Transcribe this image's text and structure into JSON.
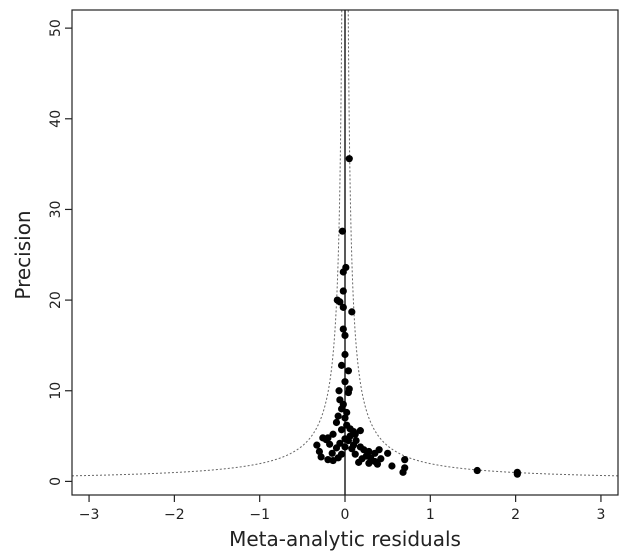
{
  "chart_data": {
    "type": "scatter",
    "title": "",
    "xlabel": "Meta-analytic residuals",
    "ylabel": "Precision",
    "xlim": [
      -3.2,
      3.2
    ],
    "ylim": [
      -1.5,
      52
    ],
    "xticks": [
      -3,
      -2,
      -1,
      0,
      1,
      2,
      3
    ],
    "xtick_labels": [
      "−3",
      "−2",
      "−1",
      "0",
      "1",
      "2",
      "3"
    ],
    "yticks": [
      0,
      10,
      20,
      30,
      40,
      50
    ],
    "ytick_labels": [
      "0",
      "10",
      "20",
      "30",
      "40",
      "50"
    ],
    "vertical_reference_line_x": 0,
    "funnel_bound_z": 1.96,
    "grid": false,
    "legend": "none",
    "colors": {
      "points": "#000000",
      "axes": "#222222",
      "funnel": "#666666"
    },
    "points": [
      {
        "x": 0.05,
        "y": 35.6
      },
      {
        "x": -0.03,
        "y": 27.6
      },
      {
        "x": 0.01,
        "y": 23.6
      },
      {
        "x": -0.02,
        "y": 23.1
      },
      {
        "x": -0.02,
        "y": 21.0
      },
      {
        "x": -0.09,
        "y": 20.0
      },
      {
        "x": -0.06,
        "y": 19.8
      },
      {
        "x": -0.02,
        "y": 19.2
      },
      {
        "x": 0.08,
        "y": 18.7
      },
      {
        "x": -0.02,
        "y": 16.8
      },
      {
        "x": 0.0,
        "y": 16.1
      },
      {
        "x": 0.0,
        "y": 14.0
      },
      {
        "x": -0.04,
        "y": 12.8
      },
      {
        "x": 0.04,
        "y": 12.2
      },
      {
        "x": 0.0,
        "y": 11.0
      },
      {
        "x": 0.05,
        "y": 10.2
      },
      {
        "x": -0.07,
        "y": 10.0
      },
      {
        "x": 0.04,
        "y": 9.8
      },
      {
        "x": -0.06,
        "y": 9.0
      },
      {
        "x": -0.02,
        "y": 8.5
      },
      {
        "x": -0.04,
        "y": 8.0
      },
      {
        "x": 0.02,
        "y": 7.6
      },
      {
        "x": -0.08,
        "y": 7.2
      },
      {
        "x": 0.0,
        "y": 7.0
      },
      {
        "x": -0.1,
        "y": 6.5
      },
      {
        "x": 0.02,
        "y": 6.2
      },
      {
        "x": 0.06,
        "y": 5.8
      },
      {
        "x": -0.04,
        "y": 5.7
      },
      {
        "x": 0.1,
        "y": 5.5
      },
      {
        "x": 0.18,
        "y": 5.6
      },
      {
        "x": -0.14,
        "y": 5.2
      },
      {
        "x": 0.06,
        "y": 5.0
      },
      {
        "x": 0.12,
        "y": 5.2
      },
      {
        "x": -0.2,
        "y": 4.8
      },
      {
        "x": 0.0,
        "y": 4.7
      },
      {
        "x": 0.04,
        "y": 4.5
      },
      {
        "x": 0.13,
        "y": 4.5
      },
      {
        "x": -0.06,
        "y": 4.2
      },
      {
        "x": 0.1,
        "y": 4.0
      },
      {
        "x": -0.18,
        "y": 4.1
      },
      {
        "x": -0.26,
        "y": 4.8
      },
      {
        "x": -0.22,
        "y": 4.6
      },
      {
        "x": -0.33,
        "y": 4.0
      },
      {
        "x": -0.1,
        "y": 3.7
      },
      {
        "x": 0.0,
        "y": 3.8
      },
      {
        "x": 0.08,
        "y": 3.6
      },
      {
        "x": 0.18,
        "y": 3.8
      },
      {
        "x": 0.22,
        "y": 3.5
      },
      {
        "x": 0.28,
        "y": 3.3
      },
      {
        "x": 0.35,
        "y": 3.1
      },
      {
        "x": 0.4,
        "y": 3.5
      },
      {
        "x": 0.5,
        "y": 3.1
      },
      {
        "x": -0.3,
        "y": 3.3
      },
      {
        "x": -0.15,
        "y": 3.1
      },
      {
        "x": -0.04,
        "y": 3.0
      },
      {
        "x": 0.12,
        "y": 3.0
      },
      {
        "x": 0.25,
        "y": 2.8
      },
      {
        "x": -0.28,
        "y": 2.7
      },
      {
        "x": -0.08,
        "y": 2.6
      },
      {
        "x": 0.3,
        "y": 2.6
      },
      {
        "x": 0.2,
        "y": 2.5
      },
      {
        "x": 0.42,
        "y": 2.5
      },
      {
        "x": 0.7,
        "y": 2.4
      },
      {
        "x": -0.14,
        "y": 2.3
      },
      {
        "x": 0.35,
        "y": 2.2
      },
      {
        "x": 0.28,
        "y": 2.0
      },
      {
        "x": 0.38,
        "y": 1.9
      },
      {
        "x": 0.55,
        "y": 1.7
      },
      {
        "x": 0.7,
        "y": 1.5
      },
      {
        "x": 0.68,
        "y": 1.0
      },
      {
        "x": 1.55,
        "y": 1.2
      },
      {
        "x": 2.02,
        "y": 1.0
      },
      {
        "x": 2.02,
        "y": 0.8
      },
      {
        "x": 0.16,
        "y": 2.1
      },
      {
        "x": -0.2,
        "y": 2.4
      }
    ]
  }
}
